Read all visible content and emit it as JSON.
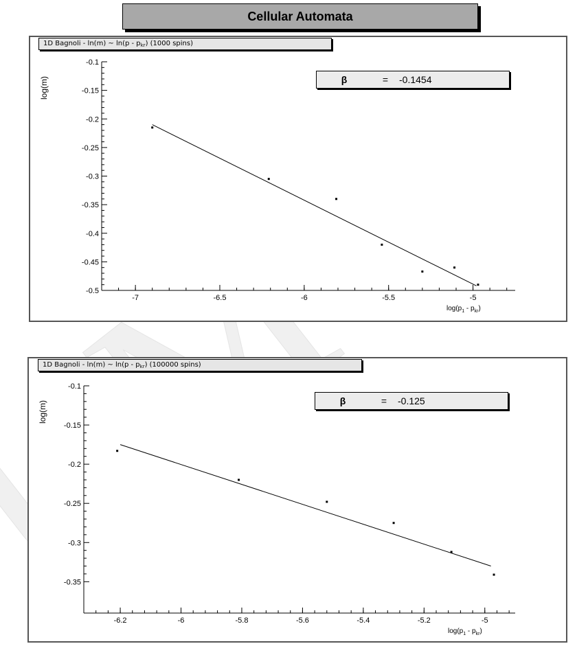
{
  "page_title": "Cellular Automata",
  "watermark": "UMCS",
  "chart_data": [
    {
      "type": "scatter",
      "title_prefix": "1D Bagnoli - ln(m) ~ ln(p - p",
      "title_sub": "kr",
      "title_suffix": ") (1000 spins)",
      "ylabel": "log(m)",
      "xlabel": "log(p",
      "xlabel_sub1": "1",
      "xlabel_mid": " - p",
      "xlabel_sub2": "kr",
      "xlabel_end": ")",
      "fit_symbol": "β",
      "fit_eq": "=",
      "fit_value": "-0.1454",
      "xlim": [
        -7.2,
        -4.75
      ],
      "ylim": [
        -0.5,
        -0.1
      ],
      "xticks": [
        -7,
        -6.5,
        -6,
        -5.5,
        -5
      ],
      "xtick_labels": [
        "-7",
        "-6.5",
        "-6",
        "-5.5",
        "-5"
      ],
      "yticks": [
        -0.1,
        -0.15,
        -0.2,
        -0.25,
        -0.3,
        -0.35,
        -0.4,
        -0.45,
        -0.5
      ],
      "ytick_labels": [
        "-0.1",
        "-0.15",
        "-0.2",
        "-0.25",
        "-0.3",
        "-0.35",
        "-0.4",
        "-0.45",
        "-0.5"
      ],
      "points": [
        {
          "x": -6.9,
          "y": -0.215
        },
        {
          "x": -6.21,
          "y": -0.305
        },
        {
          "x": -5.81,
          "y": -0.34
        },
        {
          "x": -5.54,
          "y": -0.42
        },
        {
          "x": -5.3,
          "y": -0.467
        },
        {
          "x": -5.11,
          "y": -0.46
        },
        {
          "x": -4.97,
          "y": -0.49
        }
      ],
      "fit_line": [
        {
          "x": -6.9,
          "y": -0.21
        },
        {
          "x": -4.98,
          "y": -0.492
        }
      ]
    },
    {
      "type": "scatter",
      "title_prefix": "1D Bagnoli - ln(m) ~ ln(p - p",
      "title_sub": "kr",
      "title_suffix": ") (100000 spins)",
      "ylabel": "log(m)",
      "xlabel": "log(p",
      "xlabel_sub1": "1",
      "xlabel_mid": " - p",
      "xlabel_sub2": "kr",
      "xlabel_end": ")",
      "fit_symbol": "β",
      "fit_eq": "=",
      "fit_value": "-0.125",
      "xlim": [
        -6.32,
        -4.9
      ],
      "ylim": [
        -0.39,
        -0.1
      ],
      "xticks": [
        -6.2,
        -6,
        -5.8,
        -5.6,
        -5.4,
        -5.2,
        -5
      ],
      "xtick_labels": [
        "-6.2",
        "-6",
        "-5.8",
        "-5.6",
        "-5.4",
        "-5.2",
        "-5"
      ],
      "yticks": [
        -0.1,
        -0.15,
        -0.2,
        -0.25,
        -0.3,
        -0.35
      ],
      "ytick_labels": [
        "-0.1",
        "-0.15",
        "-0.2",
        "-0.25",
        "-0.3",
        "-0.35"
      ],
      "points": [
        {
          "x": -6.21,
          "y": -0.183
        },
        {
          "x": -5.81,
          "y": -0.22
        },
        {
          "x": -5.52,
          "y": -0.248
        },
        {
          "x": -5.3,
          "y": -0.275
        },
        {
          "x": -5.11,
          "y": -0.312
        },
        {
          "x": -4.97,
          "y": -0.341
        }
      ],
      "fit_line": [
        {
          "x": -6.2,
          "y": -0.175
        },
        {
          "x": -4.98,
          "y": -0.33
        }
      ]
    }
  ]
}
